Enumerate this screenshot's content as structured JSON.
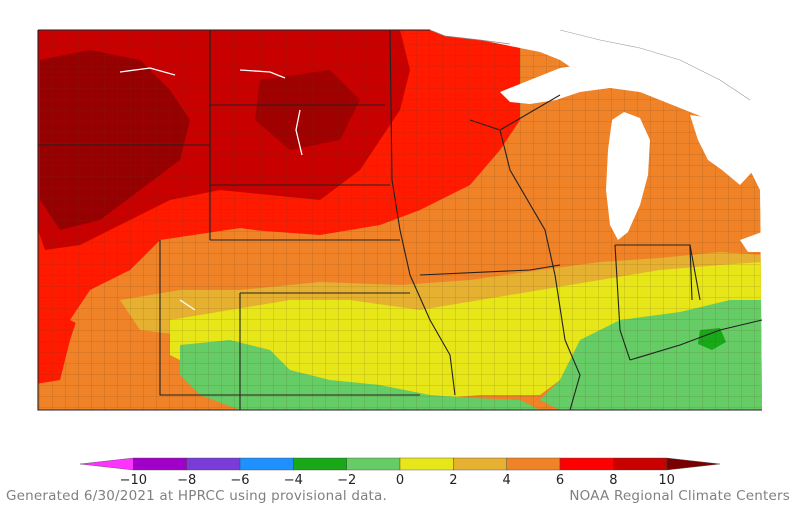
{
  "map": {
    "region_label": "",
    "background_color": "#ffffff",
    "water_color": "#ffffff",
    "state_border_color": "#222222",
    "county_border_color": "#6a4a20"
  },
  "legend": {
    "min_label": "−10",
    "tick_labels": [
      "−10",
      "−8",
      "−6",
      "−4",
      "−2",
      "0",
      "2",
      "4",
      "6",
      "8",
      "10"
    ],
    "bins": [
      {
        "from": -12,
        "to": -10,
        "color": "#ff33ff"
      },
      {
        "from": -10,
        "to": -8,
        "color": "#a000c8"
      },
      {
        "from": -8,
        "to": -6,
        "color": "#7a3cd8"
      },
      {
        "from": -6,
        "to": -4,
        "color": "#1e90ff"
      },
      {
        "from": -4,
        "to": -2,
        "color": "#18a818"
      },
      {
        "from": -2,
        "to": 0,
        "color": "#66cc66"
      },
      {
        "from": 0,
        "to": 2,
        "color": "#e6e619"
      },
      {
        "from": 2,
        "to": 4,
        "color": "#e6b030"
      },
      {
        "from": 4,
        "to": 6,
        "color": "#f08228"
      },
      {
        "from": 6,
        "to": 8,
        "color": "#ff0000"
      },
      {
        "from": 8,
        "to": 10,
        "color": "#c80000"
      },
      {
        "from": 10,
        "to": 12,
        "color": "#7a0000"
      }
    ]
  },
  "footer": {
    "left": "Generated 6/30/2021 at HPRCC using provisional data.",
    "right": "NOAA Regional Climate Centers"
  }
}
